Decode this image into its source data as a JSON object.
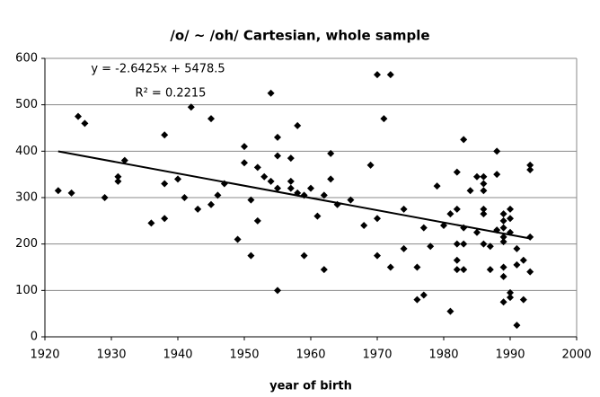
{
  "chart_data": {
    "type": "scatter",
    "title": "/o/ ~ /oh/ Cartesian, whole sample",
    "x_label": "year of birth",
    "annotations": [
      "y = -2.6425x + 5478.5",
      "R² = 0.2215"
    ],
    "trendline": {
      "slope": -2.6425,
      "intercept": 5478.5,
      "x": [
        1922,
        1993
      ]
    },
    "color": "#000000",
    "grid": true,
    "xlim": [
      1920,
      2000
    ],
    "xticks": [
      1920,
      1930,
      1940,
      1950,
      1960,
      1970,
      1980,
      1990,
      2000
    ],
    "ylim": [
      0,
      600
    ],
    "yticks": [
      0,
      100,
      200,
      300,
      400,
      500,
      600
    ],
    "x": [
      1922,
      1924,
      1925,
      1926,
      1929,
      1931,
      1931,
      1932,
      1936,
      1938,
      1938,
      1938,
      1940,
      1941,
      1942,
      1943,
      1945,
      1945,
      1946,
      1947,
      1949,
      1950,
      1950,
      1951,
      1951,
      1952,
      1952,
      1953,
      1954,
      1954,
      1955,
      1955,
      1955,
      1955,
      1957,
      1957,
      1957,
      1958,
      1958,
      1959,
      1959,
      1960,
      1961,
      1962,
      1962,
      1963,
      1963,
      1964,
      1966,
      1968,
      1969,
      1970,
      1970,
      1970,
      1971,
      1972,
      1972,
      1974,
      1974,
      1976,
      1976,
      1977,
      1977,
      1978,
      1979,
      1980,
      1981,
      1981,
      1982,
      1982,
      1982,
      1982,
      1982,
      1983,
      1983,
      1983,
      1983,
      1984,
      1985,
      1985,
      1986,
      1986,
      1986,
      1986,
      1986,
      1986,
      1987,
      1987,
      1988,
      1988,
      1988,
      1989,
      1989,
      1989,
      1989,
      1989,
      1989,
      1989,
      1989,
      1990,
      1990,
      1990,
      1990,
      1990,
      1991,
      1991,
      1991,
      1992,
      1992,
      1993,
      1993,
      1993,
      1993
    ],
    "values": [
      315,
      310,
      475,
      460,
      300,
      345,
      335,
      380,
      245,
      255,
      330,
      435,
      340,
      300,
      495,
      275,
      470,
      285,
      305,
      330,
      210,
      410,
      375,
      175,
      295,
      365,
      250,
      345,
      525,
      335,
      430,
      320,
      100,
      390,
      385,
      320,
      335,
      455,
      310,
      305,
      175,
      320,
      260,
      305,
      145,
      395,
      340,
      285,
      295,
      240,
      370,
      565,
      255,
      175,
      470,
      565,
      150,
      275,
      190,
      150,
      80,
      90,
      235,
      195,
      325,
      240,
      265,
      55,
      355,
      275,
      200,
      165,
      145,
      425,
      235,
      200,
      145,
      315,
      345,
      225,
      345,
      330,
      315,
      275,
      265,
      200,
      195,
      145,
      400,
      350,
      230,
      265,
      250,
      235,
      215,
      205,
      150,
      130,
      75,
      275,
      255,
      225,
      95,
      85,
      190,
      155,
      25,
      165,
      80,
      370,
      360,
      215,
      140
    ]
  }
}
